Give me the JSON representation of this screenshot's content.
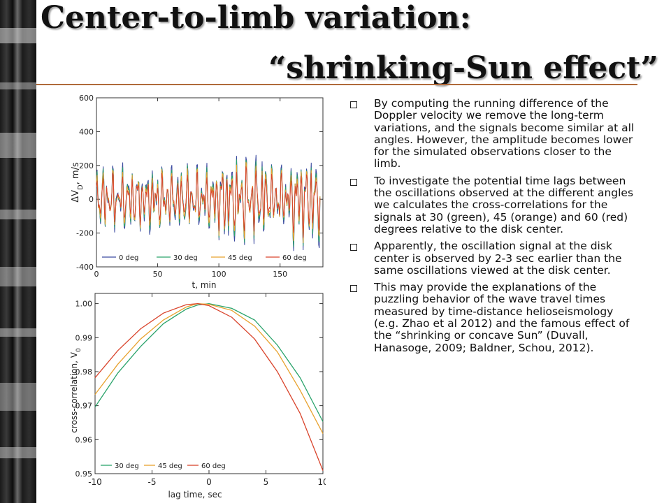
{
  "slide": {
    "title_line1": "Center-to-limb variation:",
    "title_line2": "“shrinking-Sun effect”",
    "bullets": [
      "By computing the running difference of the Doppler velocity we remove the long-term variations, and the signals become similar at all angles. However, the amplitude becomes lower for the simulated observations closer to the limb.",
      "To investigate the potential time lags between the oscillations observed at the different angles we calculates the cross-correlations for the signals at 30 (green), 45 (orange) and 60 (red) degrees relative to the disk center.",
      "Apparently, the oscillation signal at the disk center is observed by 2-3 sec earlier than the same oscillations viewed at the disk center.",
      "This may provide the explanations of the puzzling behavior of the wave travel times measured by time-distance helioseismology (e.g. Zhao et al 2012) and the famous effect of the “shrinking or concave Sun” (Duvall, Hanasoge, 2009; Baldner, Schou, 2012)."
    ]
  },
  "chart_data": [
    {
      "type": "line",
      "xlabel": "t, min",
      "ylabel": "ΔV",
      "ylabel_sub": "D",
      "ylabel_unit": ", m/s",
      "xlim": [
        0,
        185
      ],
      "ylim": [
        -400,
        600
      ],
      "xticks": [
        0,
        50,
        100,
        150
      ],
      "yticks": [
        -400,
        -200,
        0,
        200,
        400,
        600
      ],
      "legend_position": "bottom-left",
      "series": [
        {
          "name": "0 deg",
          "color": "#3b4aa0",
          "scale": 1.15
        },
        {
          "name": "30 deg",
          "color": "#2aa36b",
          "scale": 1.05
        },
        {
          "name": "45 deg",
          "color": "#e8a22e",
          "scale": 0.95
        },
        {
          "name": "60 deg",
          "color": "#d9442c",
          "scale": 0.8
        }
      ]
    },
    {
      "type": "line",
      "xlabel": "lag time, sec",
      "ylabel": "cross-correlation, V",
      "ylabel_sub": "0",
      "xlim": [
        -10,
        10
      ],
      "ylim": [
        0.95,
        1.003
      ],
      "xticks": [
        -10,
        -5,
        0,
        5,
        10
      ],
      "yticks": [
        0.95,
        0.96,
        0.97,
        0.98,
        0.99,
        1.0
      ],
      "ytick_labels": [
        "0.95",
        "0.96",
        "0.97",
        "0.98",
        "0.99",
        "1.00"
      ],
      "legend_position": "bottom-left",
      "series": [
        {
          "name": "30 deg",
          "color": "#2aa36b",
          "x": [
            -10,
            -8,
            -6,
            -4,
            -2,
            -1,
            0,
            2,
            4,
            6,
            8,
            10
          ],
          "y": [
            0.9696,
            0.9796,
            0.9874,
            0.9941,
            0.9984,
            0.9996,
            1.0,
            0.9986,
            0.9952,
            0.9878,
            0.9782,
            0.9653
          ]
        },
        {
          "name": "45 deg",
          "color": "#e8a22e",
          "x": [
            -10,
            -8,
            -6,
            -4,
            -2,
            -1,
            0,
            2,
            4,
            6,
            8,
            10
          ],
          "y": [
            0.9733,
            0.9822,
            0.9896,
            0.9952,
            0.999,
            1.0,
            0.9998,
            0.998,
            0.9934,
            0.9858,
            0.9745,
            0.9618
          ]
        },
        {
          "name": "60 deg",
          "color": "#d9442c",
          "x": [
            -10,
            -8,
            -6,
            -4,
            -2,
            -1,
            0,
            2,
            4,
            6,
            8,
            10
          ],
          "y": [
            0.9782,
            0.9862,
            0.9926,
            0.9972,
            0.9997,
            1.0,
            0.9994,
            0.996,
            0.9896,
            0.98,
            0.9677,
            0.9509
          ]
        }
      ]
    }
  ]
}
